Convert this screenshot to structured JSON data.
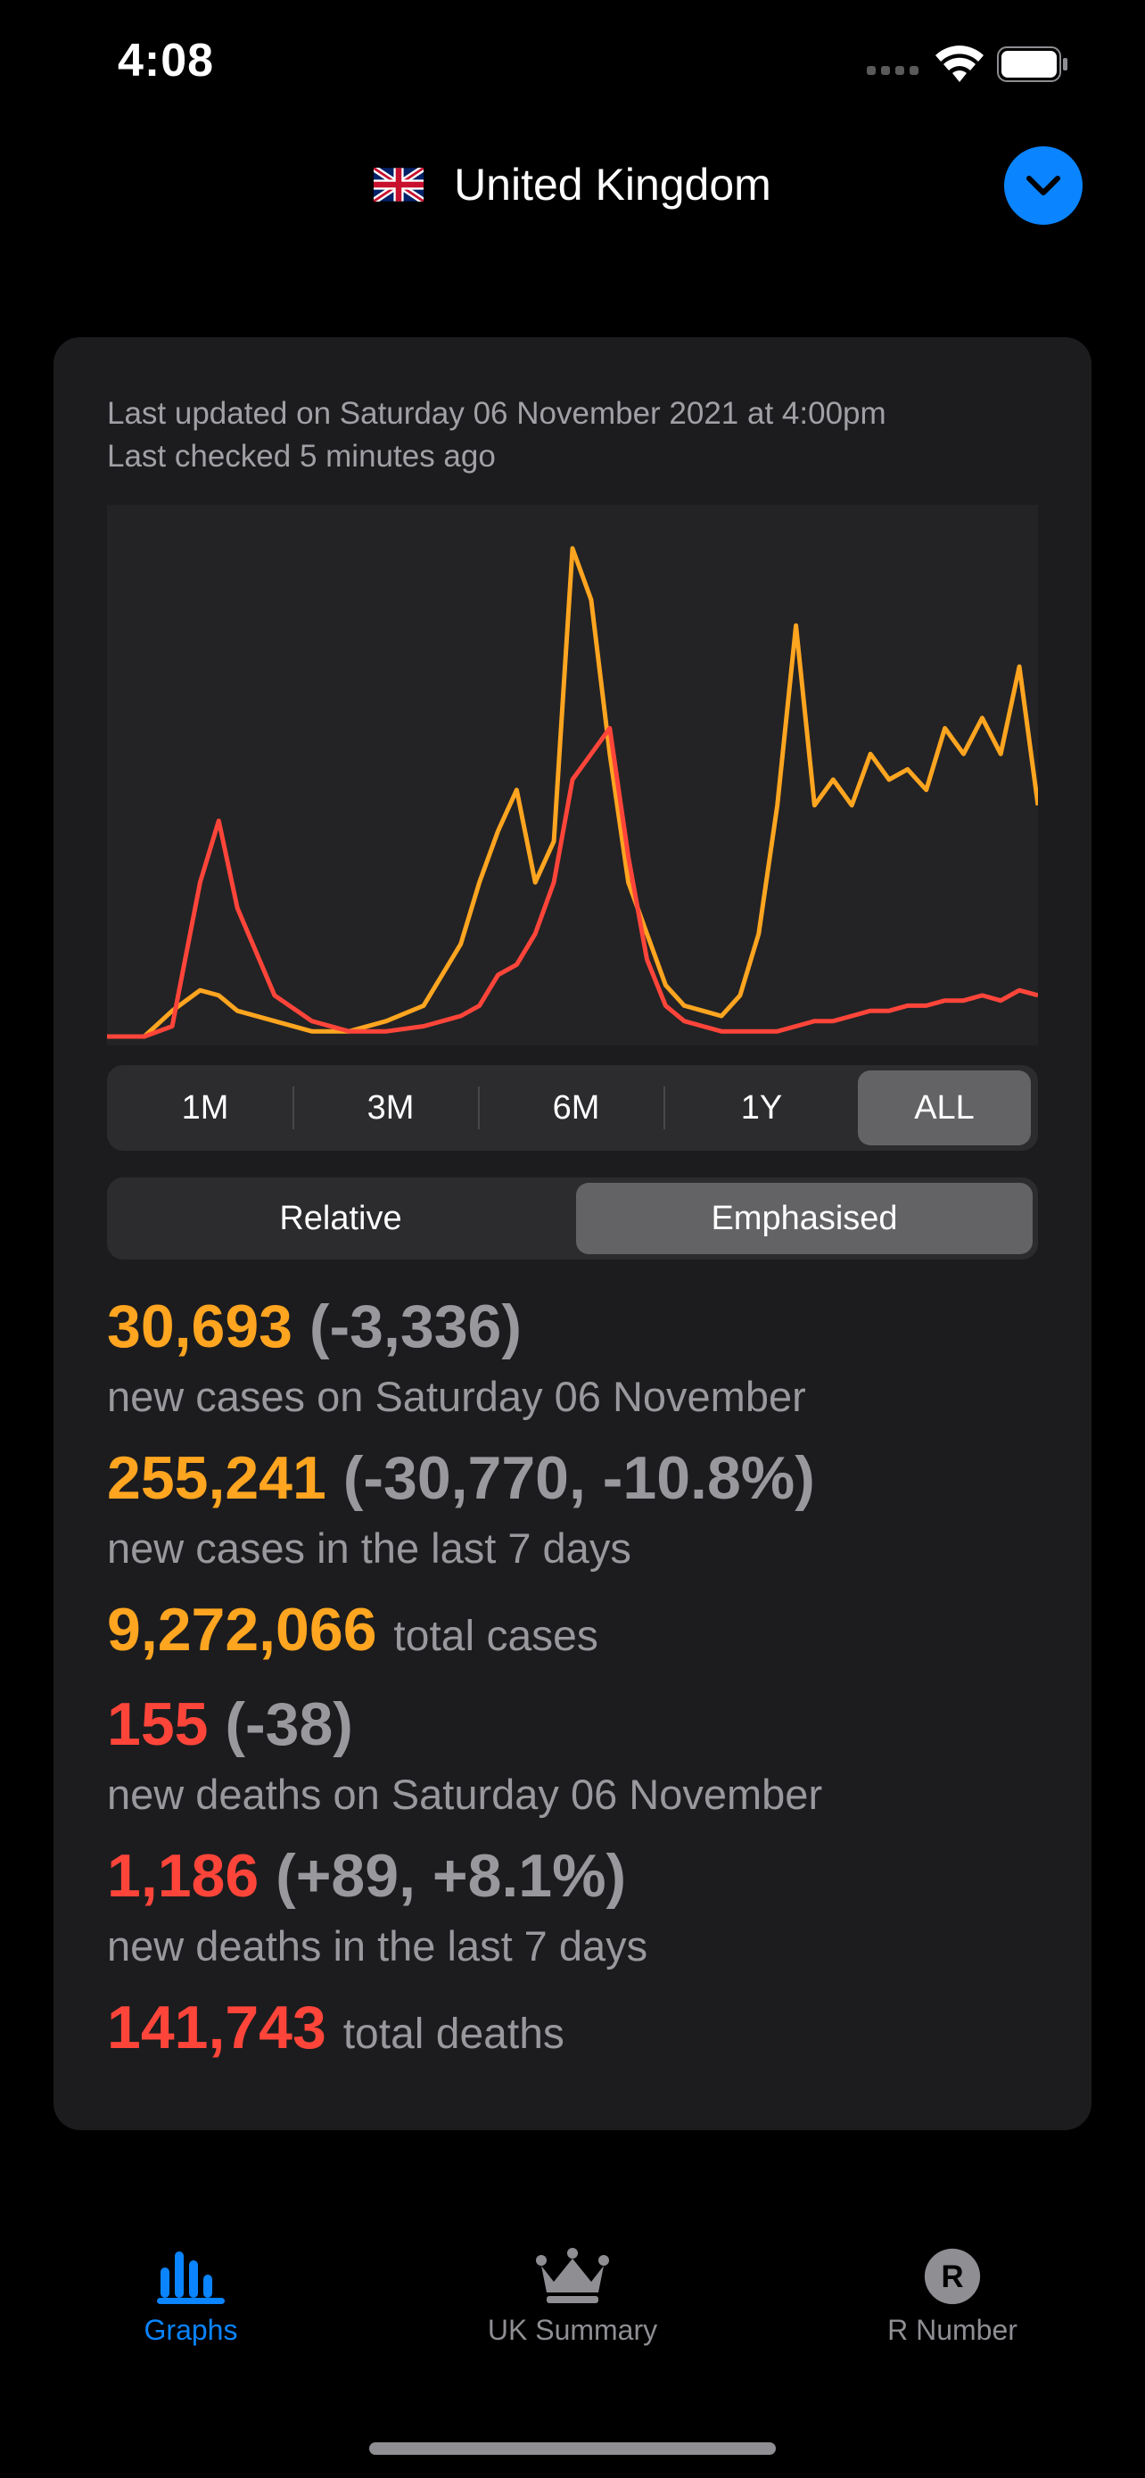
{
  "status_bar": {
    "time": "4:08"
  },
  "header": {
    "country": "United Kingdom",
    "flag_icon": "uk-flag-icon"
  },
  "card": {
    "last_updated": "Last updated on Saturday 06 November 2021 at 4:00pm",
    "last_checked": "Last checked 5 minutes ago"
  },
  "time_ranges": {
    "options": [
      "1M",
      "3M",
      "6M",
      "1Y",
      "ALL"
    ],
    "selected": "ALL"
  },
  "display_modes": {
    "options": [
      "Relative",
      "Emphasised"
    ],
    "selected": "Emphasised"
  },
  "stats": {
    "new_cases": {
      "value": "30,693",
      "delta": "(-3,336)",
      "label": "new cases on Saturday 06 November"
    },
    "cases_7d": {
      "value": "255,241",
      "delta": "(-30,770, -10.8%)",
      "label": "new cases in the last 7 days"
    },
    "total_cases": {
      "value": "9,272,066",
      "label": "total cases"
    },
    "new_deaths": {
      "value": "155",
      "delta": "(-38)",
      "label": "new deaths on Saturday 06 November"
    },
    "deaths_7d": {
      "value": "1,186",
      "delta": "(+89, +8.1%)",
      "label": "new deaths in the last 7 days"
    },
    "total_deaths": {
      "value": "141,743",
      "label": "total deaths"
    }
  },
  "chart_data": {
    "type": "line",
    "x": [
      0,
      0.04,
      0.07,
      0.1,
      0.12,
      0.14,
      0.18,
      0.22,
      0.26,
      0.3,
      0.34,
      0.38,
      0.4,
      0.42,
      0.44,
      0.46,
      0.48,
      0.5,
      0.52,
      0.54,
      0.56,
      0.58,
      0.6,
      0.62,
      0.64,
      0.66,
      0.68,
      0.7,
      0.72,
      0.74,
      0.76,
      0.78,
      0.8,
      0.82,
      0.84,
      0.86,
      0.88,
      0.9,
      0.92,
      0.94,
      0.96,
      0.98,
      1.0
    ],
    "series": [
      {
        "color": "#ffa520",
        "values": [
          0,
          0,
          0.05,
          0.09,
          0.08,
          0.05,
          0.03,
          0.01,
          0.01,
          0.03,
          0.06,
          0.18,
          0.3,
          0.4,
          0.48,
          0.3,
          0.38,
          0.95,
          0.85,
          0.55,
          0.3,
          0.2,
          0.1,
          0.06,
          0.05,
          0.04,
          0.08,
          0.2,
          0.45,
          0.8,
          0.45,
          0.5,
          0.45,
          0.55,
          0.5,
          0.52,
          0.48,
          0.6,
          0.55,
          0.62,
          0.55,
          0.72,
          0.45
        ]
      },
      {
        "color": "#ff453a",
        "values": [
          0,
          0,
          0.02,
          0.3,
          0.42,
          0.25,
          0.08,
          0.03,
          0.01,
          0.01,
          0.02,
          0.04,
          0.06,
          0.12,
          0.14,
          0.2,
          0.3,
          0.5,
          0.55,
          0.6,
          0.35,
          0.15,
          0.06,
          0.03,
          0.02,
          0.01,
          0.01,
          0.01,
          0.01,
          0.02,
          0.03,
          0.03,
          0.04,
          0.05,
          0.05,
          0.06,
          0.06,
          0.07,
          0.07,
          0.08,
          0.07,
          0.09,
          0.08
        ]
      }
    ]
  },
  "tabbar": {
    "items": [
      {
        "label": "Graphs",
        "icon": "bar-chart-icon",
        "active": true
      },
      {
        "label": "UK Summary",
        "icon": "crown-icon",
        "active": false
      },
      {
        "label": "R Number",
        "icon": "r-circle-icon",
        "active": false
      }
    ]
  }
}
